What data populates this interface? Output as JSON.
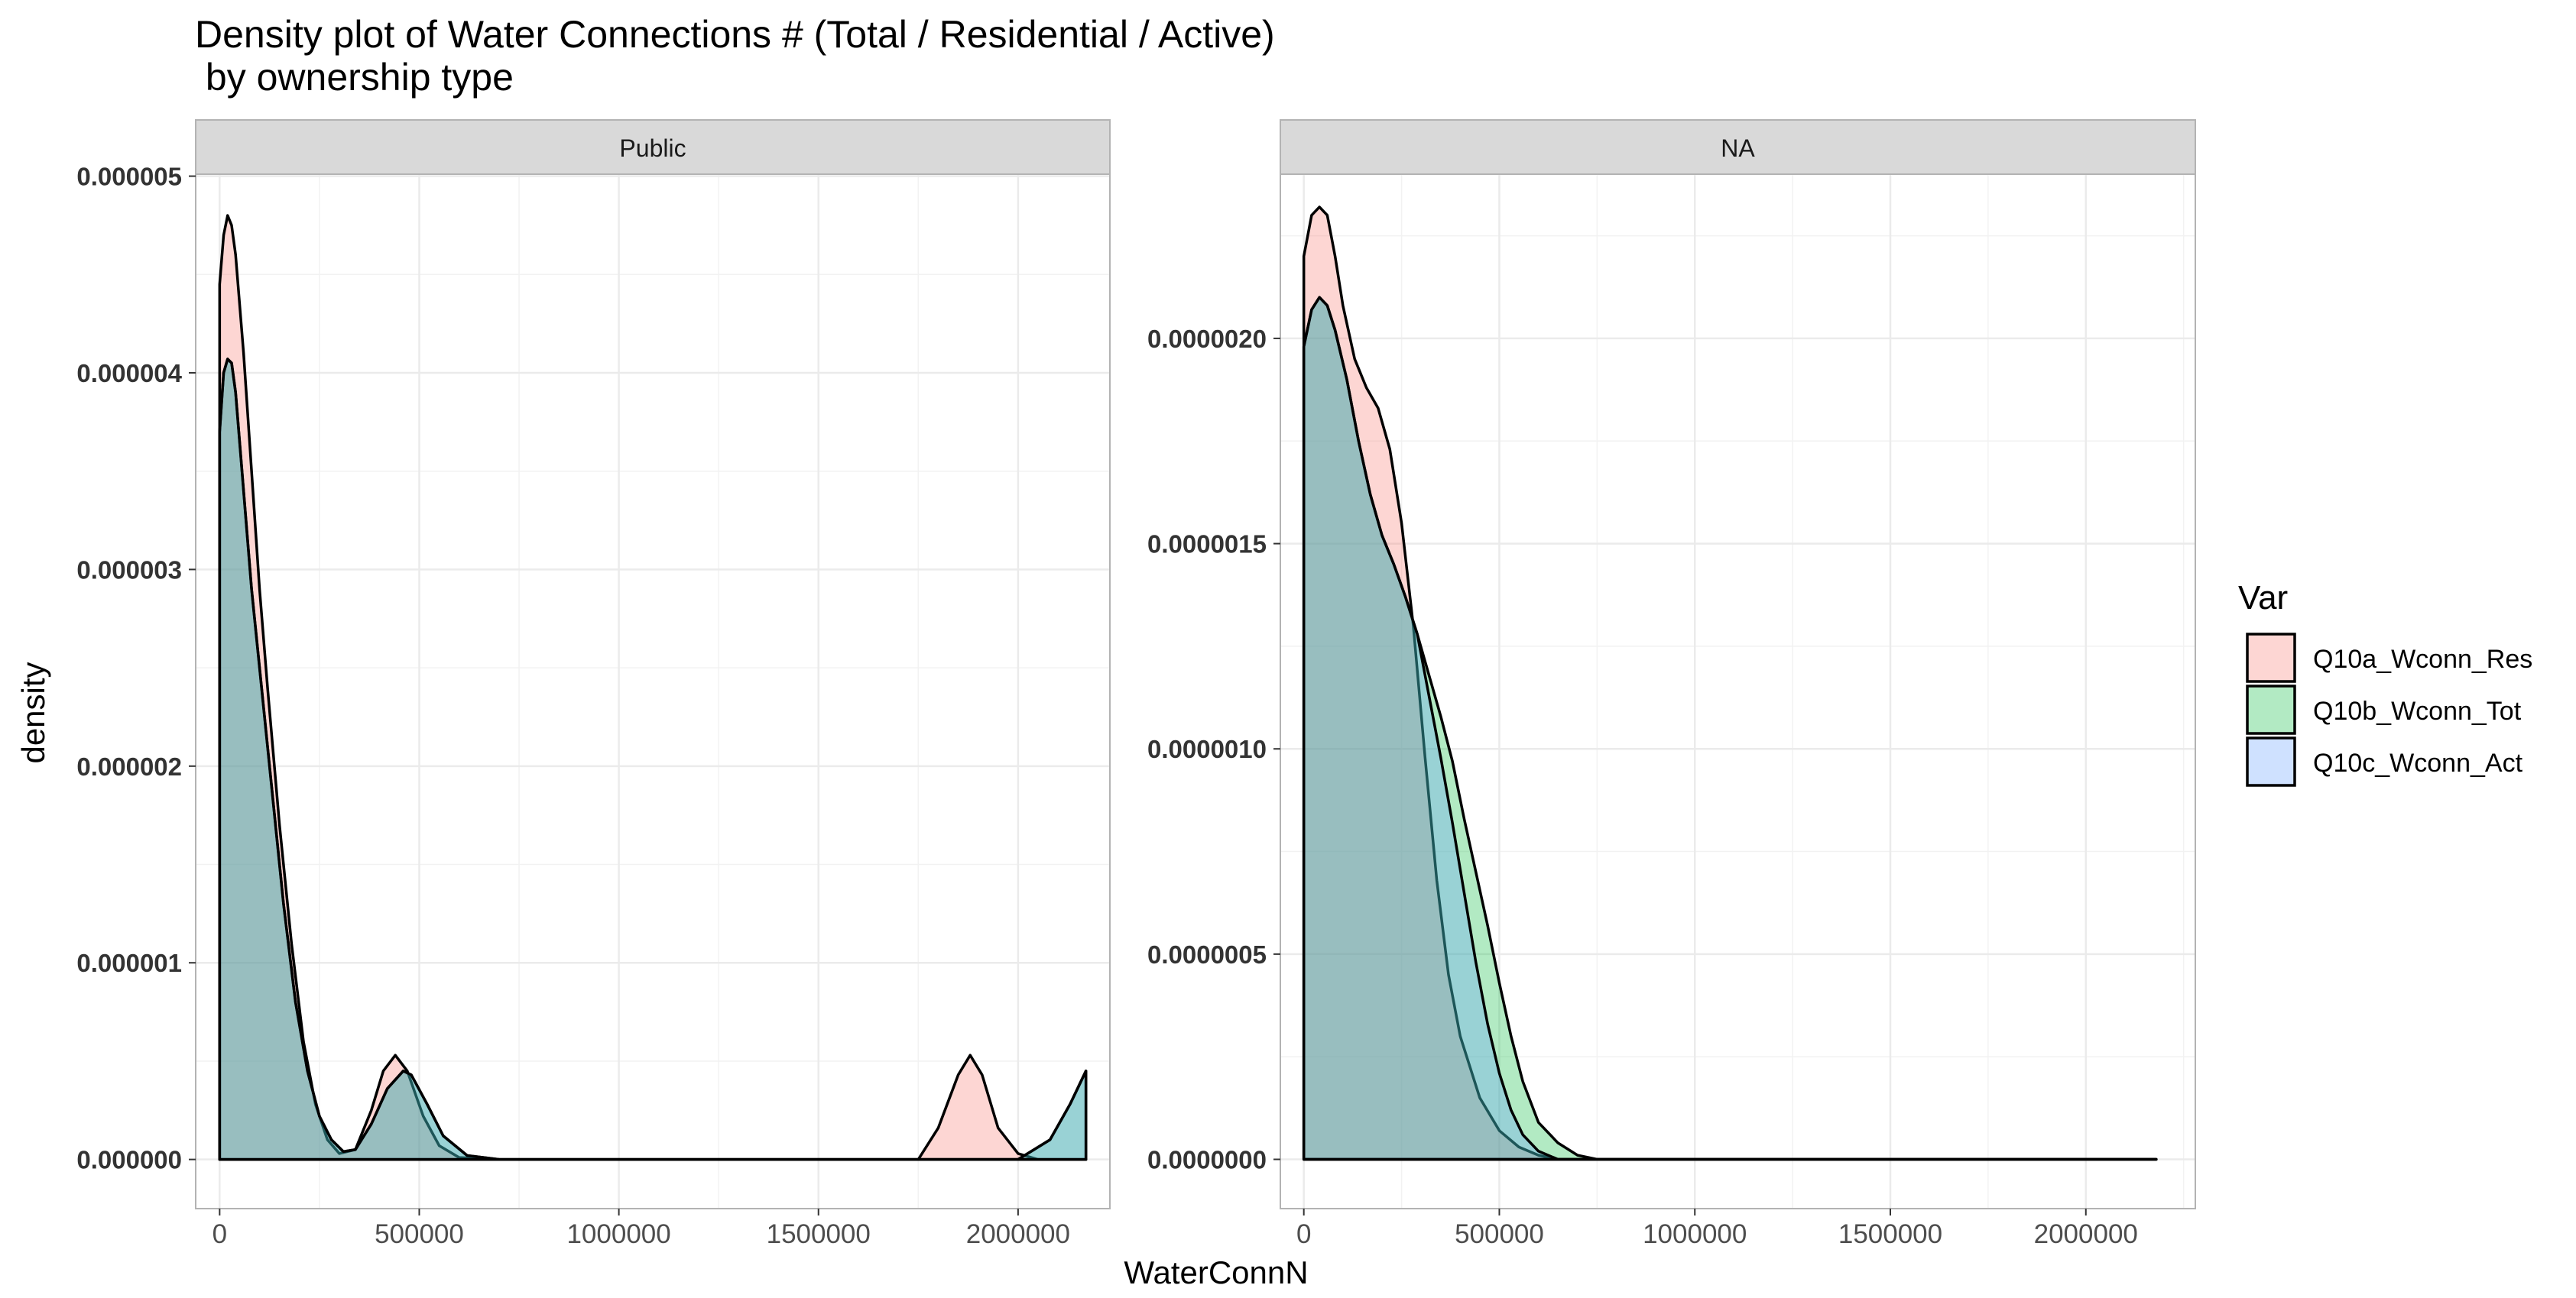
{
  "chart_data": {
    "type": "area",
    "title_lines": [
      "Density plot of Water Connections # (Total / Residential / Active)",
      " by ownership type"
    ],
    "xlabel": "WaterConnN",
    "ylabel": "density",
    "legend": {
      "title": "Var",
      "position": "right",
      "entries": [
        {
          "label": "Q10a_Wconn_Res",
          "color": "#F8766D"
        },
        {
          "label": "Q10b_Wconn_Tot",
          "color": "#00BA38"
        },
        {
          "label": "Q10c_Wconn_Act",
          "color": "#619CFF"
        }
      ]
    },
    "fill_alpha": 0.3,
    "grid": true,
    "panels": [
      {
        "strip": "Public",
        "xlim": [
          -60000,
          2230000
        ],
        "ylim": [
          -2.5e-07,
          5.01e-06
        ],
        "xticks": [
          0,
          500000,
          1000000,
          1500000,
          2000000
        ],
        "xtick_labels": [
          "0",
          "500000",
          "1000000",
          "1500000",
          "2000000"
        ],
        "yticks": [
          0,
          1e-06,
          2e-06,
          3e-06,
          4e-06,
          5e-06
        ],
        "ytick_labels": [
          "0.000000",
          "0.000001",
          "0.000002",
          "0.000003",
          "0.000004",
          "0.000005"
        ],
        "series": [
          {
            "name": "Q10a_Wconn_Res",
            "x": [
              0,
              10000,
              20000,
              30000,
              40000,
              60000,
              80000,
              100000,
              120000,
              150000,
              180000,
              210000,
              240000,
              270000,
              300000,
              340000,
              380000,
              410000,
              440000,
              470000,
              510000,
              550000,
              600000,
              700000,
              1750000,
              1800000,
              1850000,
              1880000,
              1910000,
              1950000,
              2000000,
              2050000,
              2170000
            ],
            "y": [
              4.45e-06,
              4.7e-06,
              4.8e-06,
              4.75e-06,
              4.6e-06,
              4.1e-06,
              3.5e-06,
              2.9e-06,
              2.4e-06,
              1.7e-06,
              1.1e-06,
              6e-07,
              2.8e-07,
              1e-07,
              3e-08,
              5e-08,
              2.5e-07,
              4.5e-07,
              5.3e-07,
              4.5e-07,
              2.2e-07,
              7e-08,
              1e-08,
              0,
              0,
              1.6e-07,
              4.3e-07,
              5.3e-07,
              4.3e-07,
              1.6e-07,
              3e-08,
              0,
              0
            ]
          },
          {
            "name": "Q10b_Wconn_Tot",
            "x": [
              0,
              10000,
              20000,
              30000,
              40000,
              60000,
              80000,
              100000,
              130000,
              160000,
              190000,
              220000,
              250000,
              280000,
              310000,
              340000,
              380000,
              420000,
              460000,
              480000,
              520000,
              560000,
              620000,
              700000,
              2000000,
              2080000,
              2130000,
              2170000
            ],
            "y": [
              3.7e-06,
              4e-06,
              4.07e-06,
              4.05e-06,
              3.9e-06,
              3.4e-06,
              2.9e-06,
              2.5e-06,
              1.9e-06,
              1.3e-06,
              8e-07,
              4.5e-07,
              2.2e-07,
              1e-07,
              4e-08,
              5e-08,
              1.8e-07,
              3.6e-07,
              4.5e-07,
              4.3e-07,
              2.8e-07,
              1.2e-07,
              2e-08,
              0,
              0,
              1e-07,
              2.8e-07,
              4.5e-07
            ]
          },
          {
            "name": "Q10c_Wconn_Act",
            "x": [
              0,
              10000,
              20000,
              30000,
              40000,
              60000,
              80000,
              100000,
              130000,
              160000,
              190000,
              220000,
              250000,
              280000,
              310000,
              340000,
              380000,
              420000,
              460000,
              480000,
              520000,
              560000,
              620000,
              700000,
              2000000,
              2080000,
              2130000,
              2170000
            ],
            "y": [
              3.7e-06,
              4e-06,
              4.07e-06,
              4.05e-06,
              3.9e-06,
              3.4e-06,
              2.9e-06,
              2.5e-06,
              1.9e-06,
              1.3e-06,
              8e-07,
              4.5e-07,
              2.2e-07,
              1e-07,
              4e-08,
              5e-08,
              1.8e-07,
              3.6e-07,
              4.5e-07,
              4.3e-07,
              2.8e-07,
              1.2e-07,
              2e-08,
              0,
              0,
              1e-07,
              2.8e-07,
              4.5e-07
            ]
          }
        ]
      },
      {
        "strip": "NA",
        "xlim": [
          -60000,
          2280000
        ],
        "ylim": [
          -1.2e-07,
          2.4e-06
        ],
        "xticks": [
          0,
          500000,
          1000000,
          1500000,
          2000000
        ],
        "xtick_labels": [
          "0",
          "500000",
          "1000000",
          "1500000",
          "2000000"
        ],
        "yticks": [
          0,
          5e-07,
          1e-06,
          1.5e-06,
          2e-06
        ],
        "ytick_labels": [
          "0.0000000",
          "0.0000005",
          "0.0000010",
          "0.0000015",
          "0.0000020"
        ],
        "series": [
          {
            "name": "Q10a_Wconn_Res",
            "x": [
              0,
              20000,
              40000,
              60000,
              80000,
              100000,
              130000,
              160000,
              190000,
              220000,
              250000,
              280000,
              310000,
              340000,
              370000,
              400000,
              450000,
              500000,
              550000,
              600000,
              650000,
              700000,
              800000,
              2180000
            ],
            "y": [
              2.2e-06,
              2.3e-06,
              2.32e-06,
              2.3e-06,
              2.2e-06,
              2.08e-06,
              1.95e-06,
              1.88e-06,
              1.83e-06,
              1.73e-06,
              1.55e-06,
              1.3e-06,
              9.8e-07,
              6.8e-07,
              4.5e-07,
              3e-07,
              1.5e-07,
              7e-08,
              3e-08,
              1e-08,
              0,
              0,
              0,
              0
            ]
          },
          {
            "name": "Q10b_Wconn_Tot",
            "x": [
              0,
              20000,
              40000,
              60000,
              80000,
              110000,
              140000,
              170000,
              200000,
              230000,
              260000,
              290000,
              320000,
              350000,
              380000,
              410000,
              440000,
              470000,
              500000,
              530000,
              560000,
              600000,
              650000,
              700000,
              750000,
              800000,
              900000,
              2180000
            ],
            "y": [
              1.98e-06,
              2.07e-06,
              2.1e-06,
              2.08e-06,
              2.02e-06,
              1.9e-06,
              1.75e-06,
              1.62e-06,
              1.52e-06,
              1.45e-06,
              1.37e-06,
              1.28e-06,
              1.18e-06,
              1.08e-06,
              9.7e-07,
              8.3e-07,
              7e-07,
              5.7e-07,
              4.3e-07,
              3e-07,
              1.9e-07,
              9e-08,
              4e-08,
              1e-08,
              0,
              0,
              0,
              0
            ]
          },
          {
            "name": "Q10c_Wconn_Act",
            "x": [
              0,
              20000,
              40000,
              60000,
              80000,
              110000,
              140000,
              170000,
              200000,
              230000,
              260000,
              290000,
              320000,
              350000,
              380000,
              410000,
              440000,
              470000,
              500000,
              530000,
              560000,
              600000,
              650000,
              700000,
              800000,
              2180000
            ],
            "y": [
              1.98e-06,
              2.07e-06,
              2.1e-06,
              2.08e-06,
              2.02e-06,
              1.9e-06,
              1.75e-06,
              1.62e-06,
              1.52e-06,
              1.45e-06,
              1.37e-06,
              1.28e-06,
              1.13e-06,
              9.8e-07,
              8.2e-07,
              6.5e-07,
              4.8e-07,
              3.3e-07,
              2.1e-07,
              1.2e-07,
              6e-08,
              2e-08,
              0,
              0,
              0,
              0
            ]
          }
        ]
      }
    ]
  }
}
